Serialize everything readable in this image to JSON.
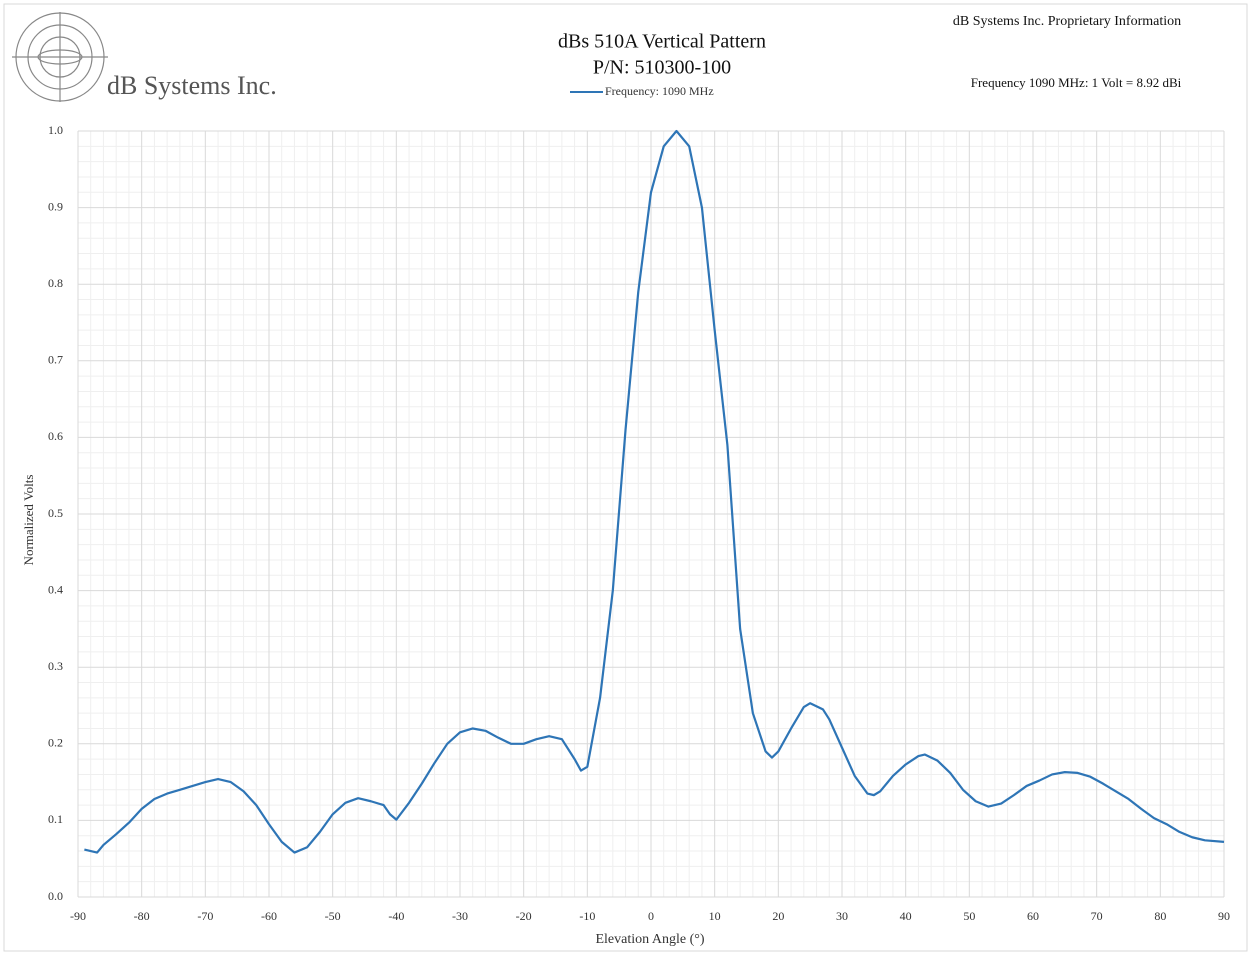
{
  "chart_data": {
    "type": "line",
    "title": "dBs 510A Vertical Pattern",
    "subtitle": "P/N: 510300-100",
    "company": "dB Systems Inc.",
    "notice": "dB Systems Inc. Proprietary  Information",
    "note": "Frequency 1090 MHz: 1 Volt = 8.92 dBi",
    "x_label": "Elevation Angle (°)",
    "y_label": "Normalized Volts",
    "x": [
      -89,
      -87,
      -86,
      -84,
      -82,
      -80,
      -78,
      -76,
      -74,
      -72,
      -70,
      -68,
      -66,
      -64,
      -62,
      -60,
      -58,
      -56,
      -54,
      -52,
      -50,
      -48,
      -46,
      -44,
      -42,
      -41,
      -40,
      -38,
      -36,
      -34,
      -32,
      -30,
      -28,
      -26,
      -24,
      -22,
      -20,
      -18,
      -16,
      -14,
      -12,
      -11,
      -10,
      -8,
      -6,
      -4,
      -2,
      0,
      2,
      4,
      6,
      8,
      10,
      12,
      14,
      16,
      18,
      19,
      20,
      22,
      24,
      25,
      27,
      28,
      30,
      32,
      34,
      35,
      36,
      38,
      40,
      42,
      43,
      45,
      47,
      49,
      51,
      53,
      55,
      57,
      59,
      61,
      63,
      65,
      67,
      69,
      71,
      73,
      75,
      77,
      79,
      81,
      83,
      85,
      87,
      90
    ],
    "series": [
      {
        "name": "Frequency: 1090 MHz",
        "color": "#2e75b6",
        "values": [
          0.062,
          0.058,
          0.068,
          0.082,
          0.097,
          0.115,
          0.128,
          0.135,
          0.14,
          0.145,
          0.15,
          0.154,
          0.15,
          0.138,
          0.12,
          0.095,
          0.072,
          0.058,
          0.065,
          0.085,
          0.108,
          0.123,
          0.129,
          0.125,
          0.12,
          0.108,
          0.101,
          0.123,
          0.148,
          0.175,
          0.2,
          0.215,
          0.22,
          0.217,
          0.208,
          0.2,
          0.2,
          0.206,
          0.21,
          0.206,
          0.18,
          0.165,
          0.17,
          0.26,
          0.4,
          0.61,
          0.79,
          0.92,
          0.98,
          1.0,
          0.98,
          0.9,
          0.74,
          0.59,
          0.35,
          0.24,
          0.19,
          0.182,
          0.19,
          0.22,
          0.248,
          0.253,
          0.245,
          0.232,
          0.195,
          0.158,
          0.135,
          0.133,
          0.138,
          0.158,
          0.173,
          0.184,
          0.186,
          0.178,
          0.162,
          0.14,
          0.125,
          0.118,
          0.122,
          0.133,
          0.145,
          0.152,
          0.16,
          0.163,
          0.162,
          0.157,
          0.148,
          0.138,
          0.128,
          0.115,
          0.103,
          0.095,
          0.085,
          0.078,
          0.074,
          0.072
        ]
      }
    ],
    "xlim": [
      -90,
      90
    ],
    "xticks": [
      -90,
      -80,
      -70,
      -60,
      -50,
      -40,
      -30,
      -20,
      -10,
      0,
      10,
      20,
      30,
      40,
      50,
      60,
      70,
      80,
      90
    ],
    "ylim": [
      0,
      1
    ],
    "yticks": [
      {
        "value": 0,
        "label": "0.0"
      },
      0.1,
      0.2,
      0.3,
      0.4,
      0.5,
      0.6,
      0.7,
      0.8,
      0.9,
      {
        "value": 1,
        "label": "1.0"
      }
    ],
    "grid": true
  }
}
